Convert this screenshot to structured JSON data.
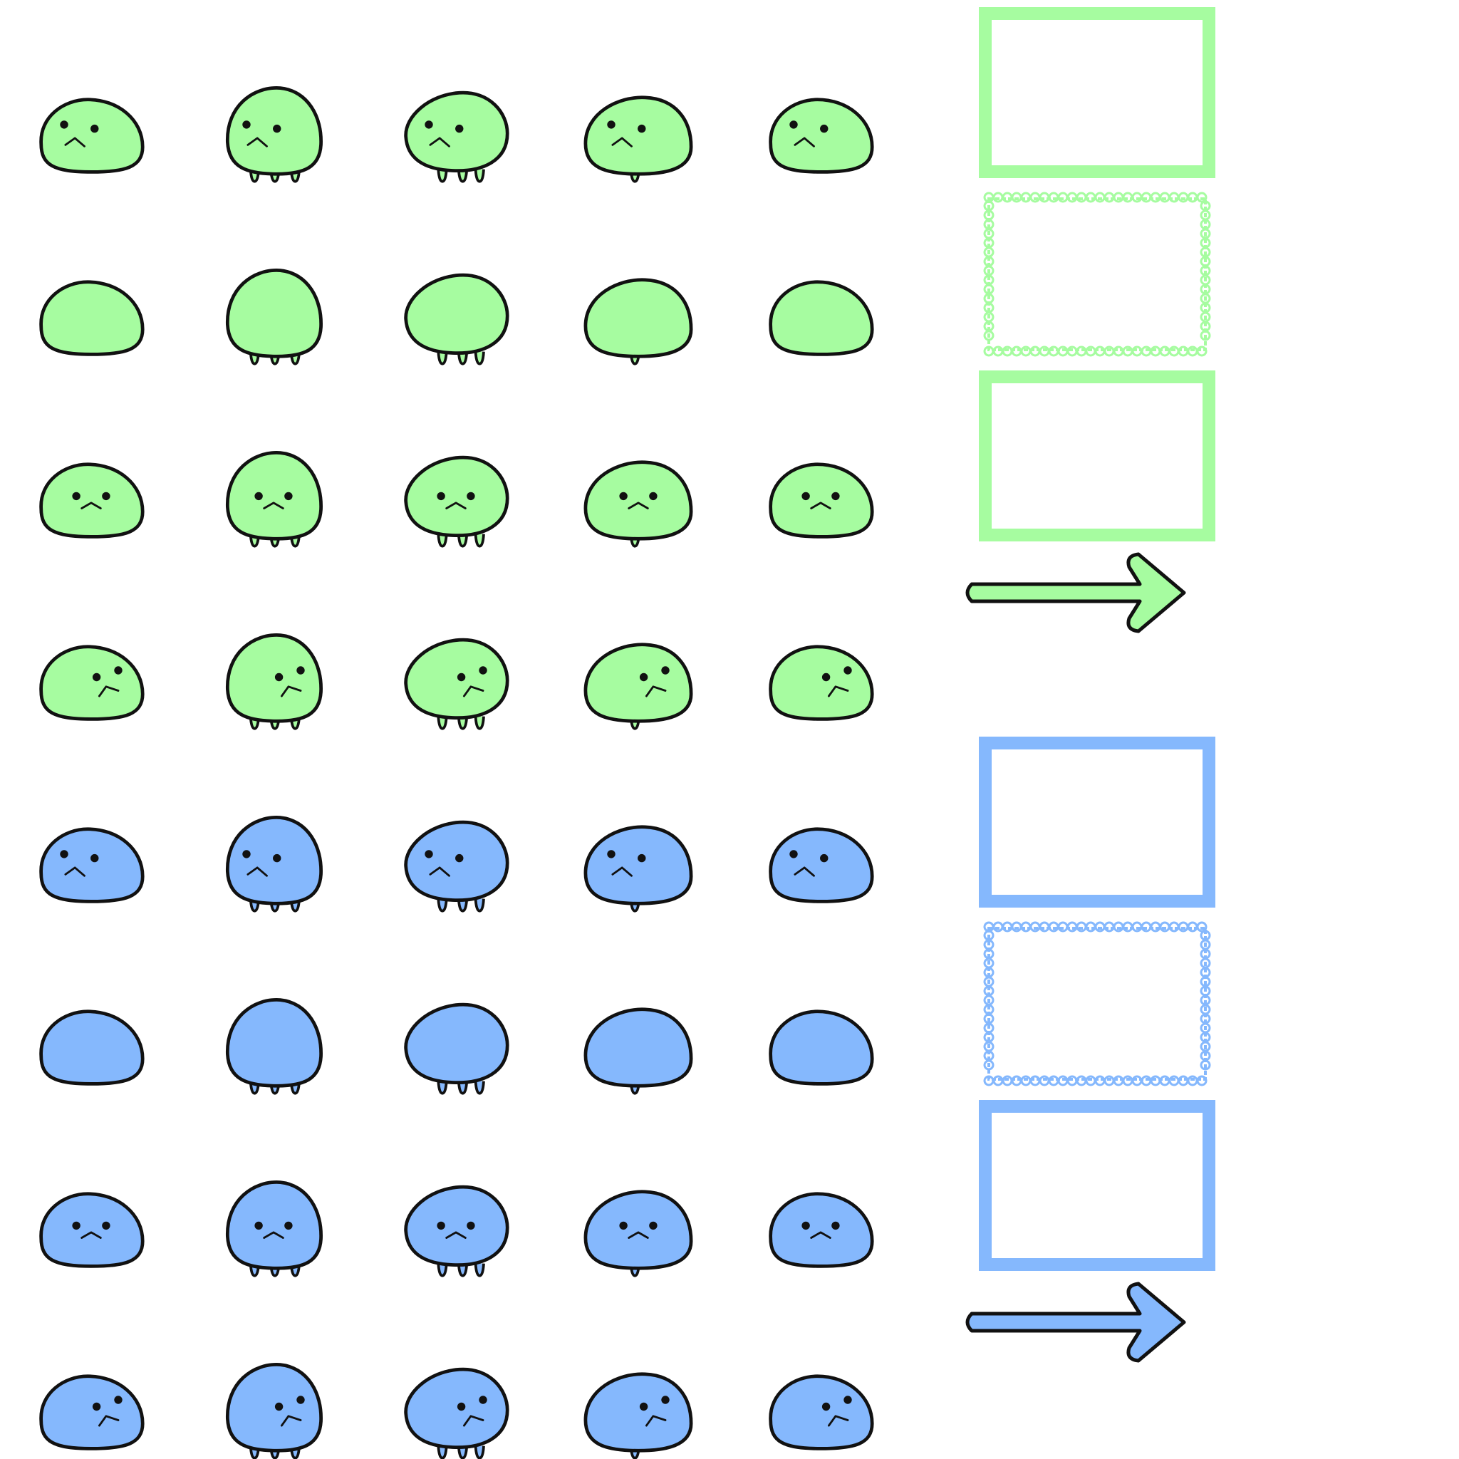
{
  "sprite_sheet": {
    "palettes": [
      {
        "name": "green",
        "fill": "#a6fca0",
        "stroke": "#111111"
      },
      {
        "name": "blue",
        "fill": "#85b8fd",
        "stroke": "#111111"
      }
    ],
    "columns": 5,
    "rows_per_palette": [
      {
        "expression": "sad",
        "look": "left"
      },
      {
        "expression": "none",
        "look": "none"
      },
      {
        "expression": "content",
        "look": "center"
      },
      {
        "expression": "sad",
        "look": "right"
      }
    ],
    "pose_shapes": [
      "blob-low",
      "blob-drip",
      "blob-float",
      "blob-lean",
      "blob-low"
    ],
    "ui_frames": [
      "frame-plain",
      "frame-lace",
      "frame-plain"
    ],
    "arrow_icon": "arrow-right-icon"
  }
}
